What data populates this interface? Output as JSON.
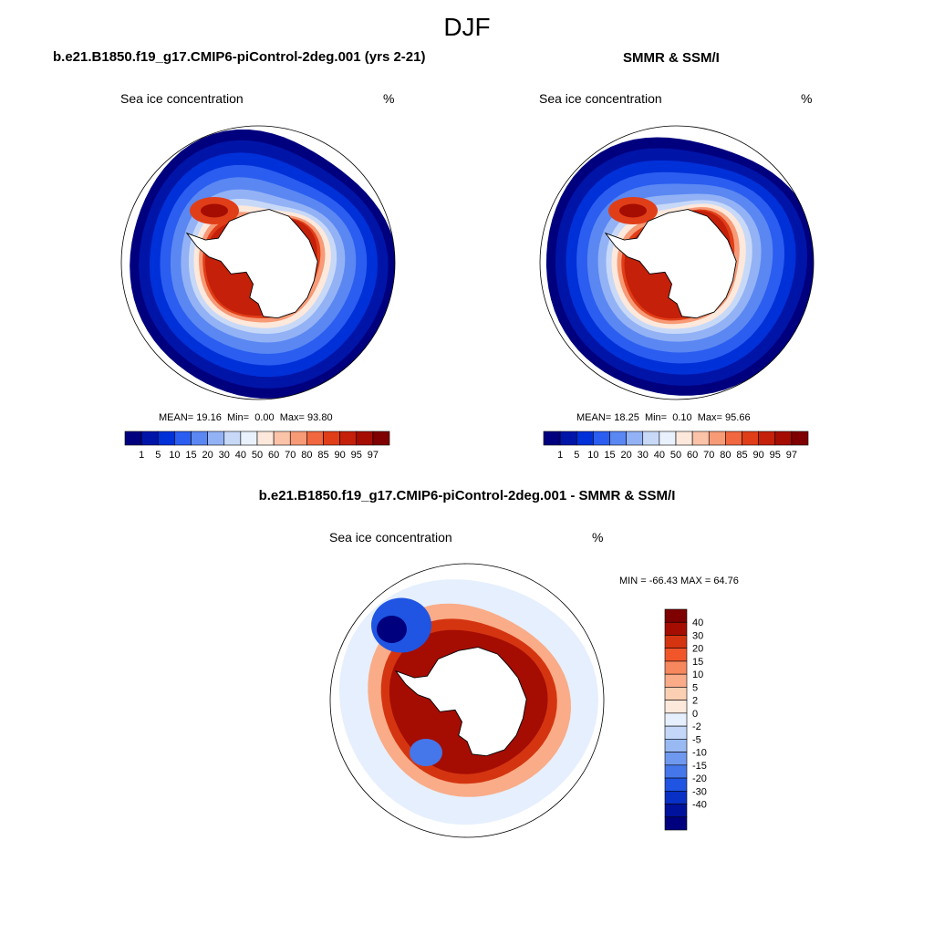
{
  "title": "DJF",
  "colors": {
    "seq_scale": [
      "#00007f",
      "#0015a8",
      "#0030d8",
      "#2a5df0",
      "#5a87f2",
      "#93b2f5",
      "#c8d9f8",
      "#e9f1fd",
      "#fde8dc",
      "#fbc3a8",
      "#f79a76",
      "#f1673f",
      "#e03e18",
      "#c4200a",
      "#a50d02",
      "#7f0000"
    ],
    "diff_scale": [
      "#7f0000",
      "#a50d02",
      "#d43510",
      "#f0562a",
      "#f7875c",
      "#f9ac87",
      "#fbcfb2",
      "#fde8dc",
      "#e6effd",
      "#c4d7f8",
      "#99b9f3",
      "#6f98ef",
      "#4577ea",
      "#1f55e2",
      "#0930c4",
      "#00119b",
      "#00007f"
    ],
    "land": "#ffffff",
    "ocean_background": "#ffffff"
  },
  "chart_data": [
    {
      "type": "heatmap",
      "title": "b.e21.B1850.f19_g17.CMIP6-piControl-2deg.001 (yrs 2-21)",
      "variable": "Sea ice concentration",
      "units": "%",
      "stats": {
        "mean_label": "MEAN=",
        "mean": "19.16",
        "min_label": "Min=",
        "min": "0.00",
        "max_label": "Max=",
        "max": "93.80"
      },
      "colorbar": {
        "orientation": "horizontal",
        "levels": [
          "1",
          "5",
          "10",
          "15",
          "20",
          "30",
          "40",
          "50",
          "60",
          "70",
          "80",
          "85",
          "90",
          "95",
          "97"
        ]
      }
    },
    {
      "type": "heatmap",
      "title": "SMMR & SSM/I",
      "variable": "Sea ice concentration",
      "units": "%",
      "stats": {
        "mean_label": "MEAN=",
        "mean": "18.25",
        "min_label": "Min=",
        "min": "0.10",
        "max_label": "Max=",
        "max": "95.66"
      },
      "colorbar": {
        "orientation": "horizontal",
        "levels": [
          "1",
          "5",
          "10",
          "15",
          "20",
          "30",
          "40",
          "50",
          "60",
          "70",
          "80",
          "85",
          "90",
          "95",
          "97"
        ]
      }
    },
    {
      "type": "heatmap",
      "title": "b.e21.B1850.f19_g17.CMIP6-piControl-2deg.001 - SMMR & SSM/I",
      "variable": "Sea ice concentration",
      "units": "%",
      "stats_text": "MIN = -66.43 MAX =  64.76",
      "colorbar": {
        "orientation": "vertical",
        "levels": [
          "40",
          "30",
          "20",
          "15",
          "10",
          "5",
          "2",
          "0",
          "-2",
          "-5",
          "-10",
          "-15",
          "-20",
          "-30",
          "-40"
        ]
      }
    }
  ]
}
